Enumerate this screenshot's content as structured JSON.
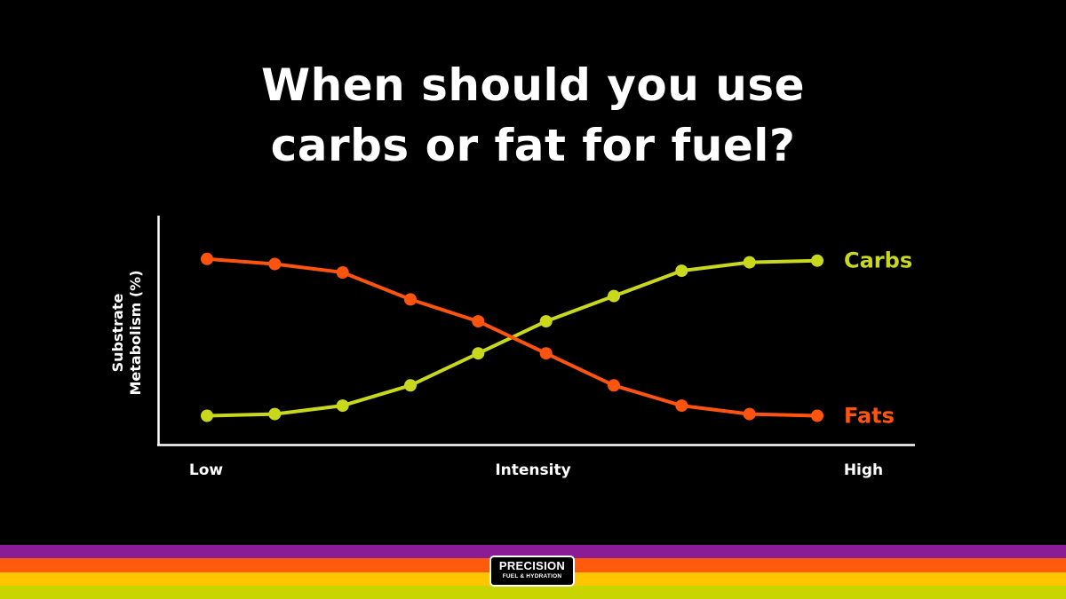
{
  "title": {
    "line1": "When should you use",
    "line2": "carbs or fat for fuel?"
  },
  "chart_data": {
    "type": "line",
    "title": "When should you use carbs or fat for fuel?",
    "xlabel": "Intensity",
    "ylabel": "Substrate Metabolism (%)",
    "ylabel_lines": [
      "Substrate",
      "Metabolism (%)"
    ],
    "x_tick_labels": [
      "Low",
      "Intensity",
      "High"
    ],
    "x": [
      1,
      2,
      3,
      4,
      5,
      6,
      7,
      8,
      9,
      10
    ],
    "xlim": [
      1,
      10
    ],
    "ylim": [
      0,
      100
    ],
    "grid": false,
    "series": [
      {
        "name": "Carbs",
        "color": "#c9d81d",
        "values": [
          5,
          6,
          11,
          23,
          42,
          61,
          76,
          91,
          96,
          97
        ]
      },
      {
        "name": "Fats",
        "color": "#ff5410",
        "values": [
          98,
          95,
          90,
          74,
          61,
          42,
          23,
          11,
          6,
          5
        ]
      }
    ]
  },
  "footer": {
    "stripe_colors": [
      "#8a1c96",
      "#ff5b0a",
      "#ffc600",
      "#c9d500"
    ],
    "logo_line1": "PRECISION",
    "logo_line2": "FUEL & HYDRATION"
  }
}
